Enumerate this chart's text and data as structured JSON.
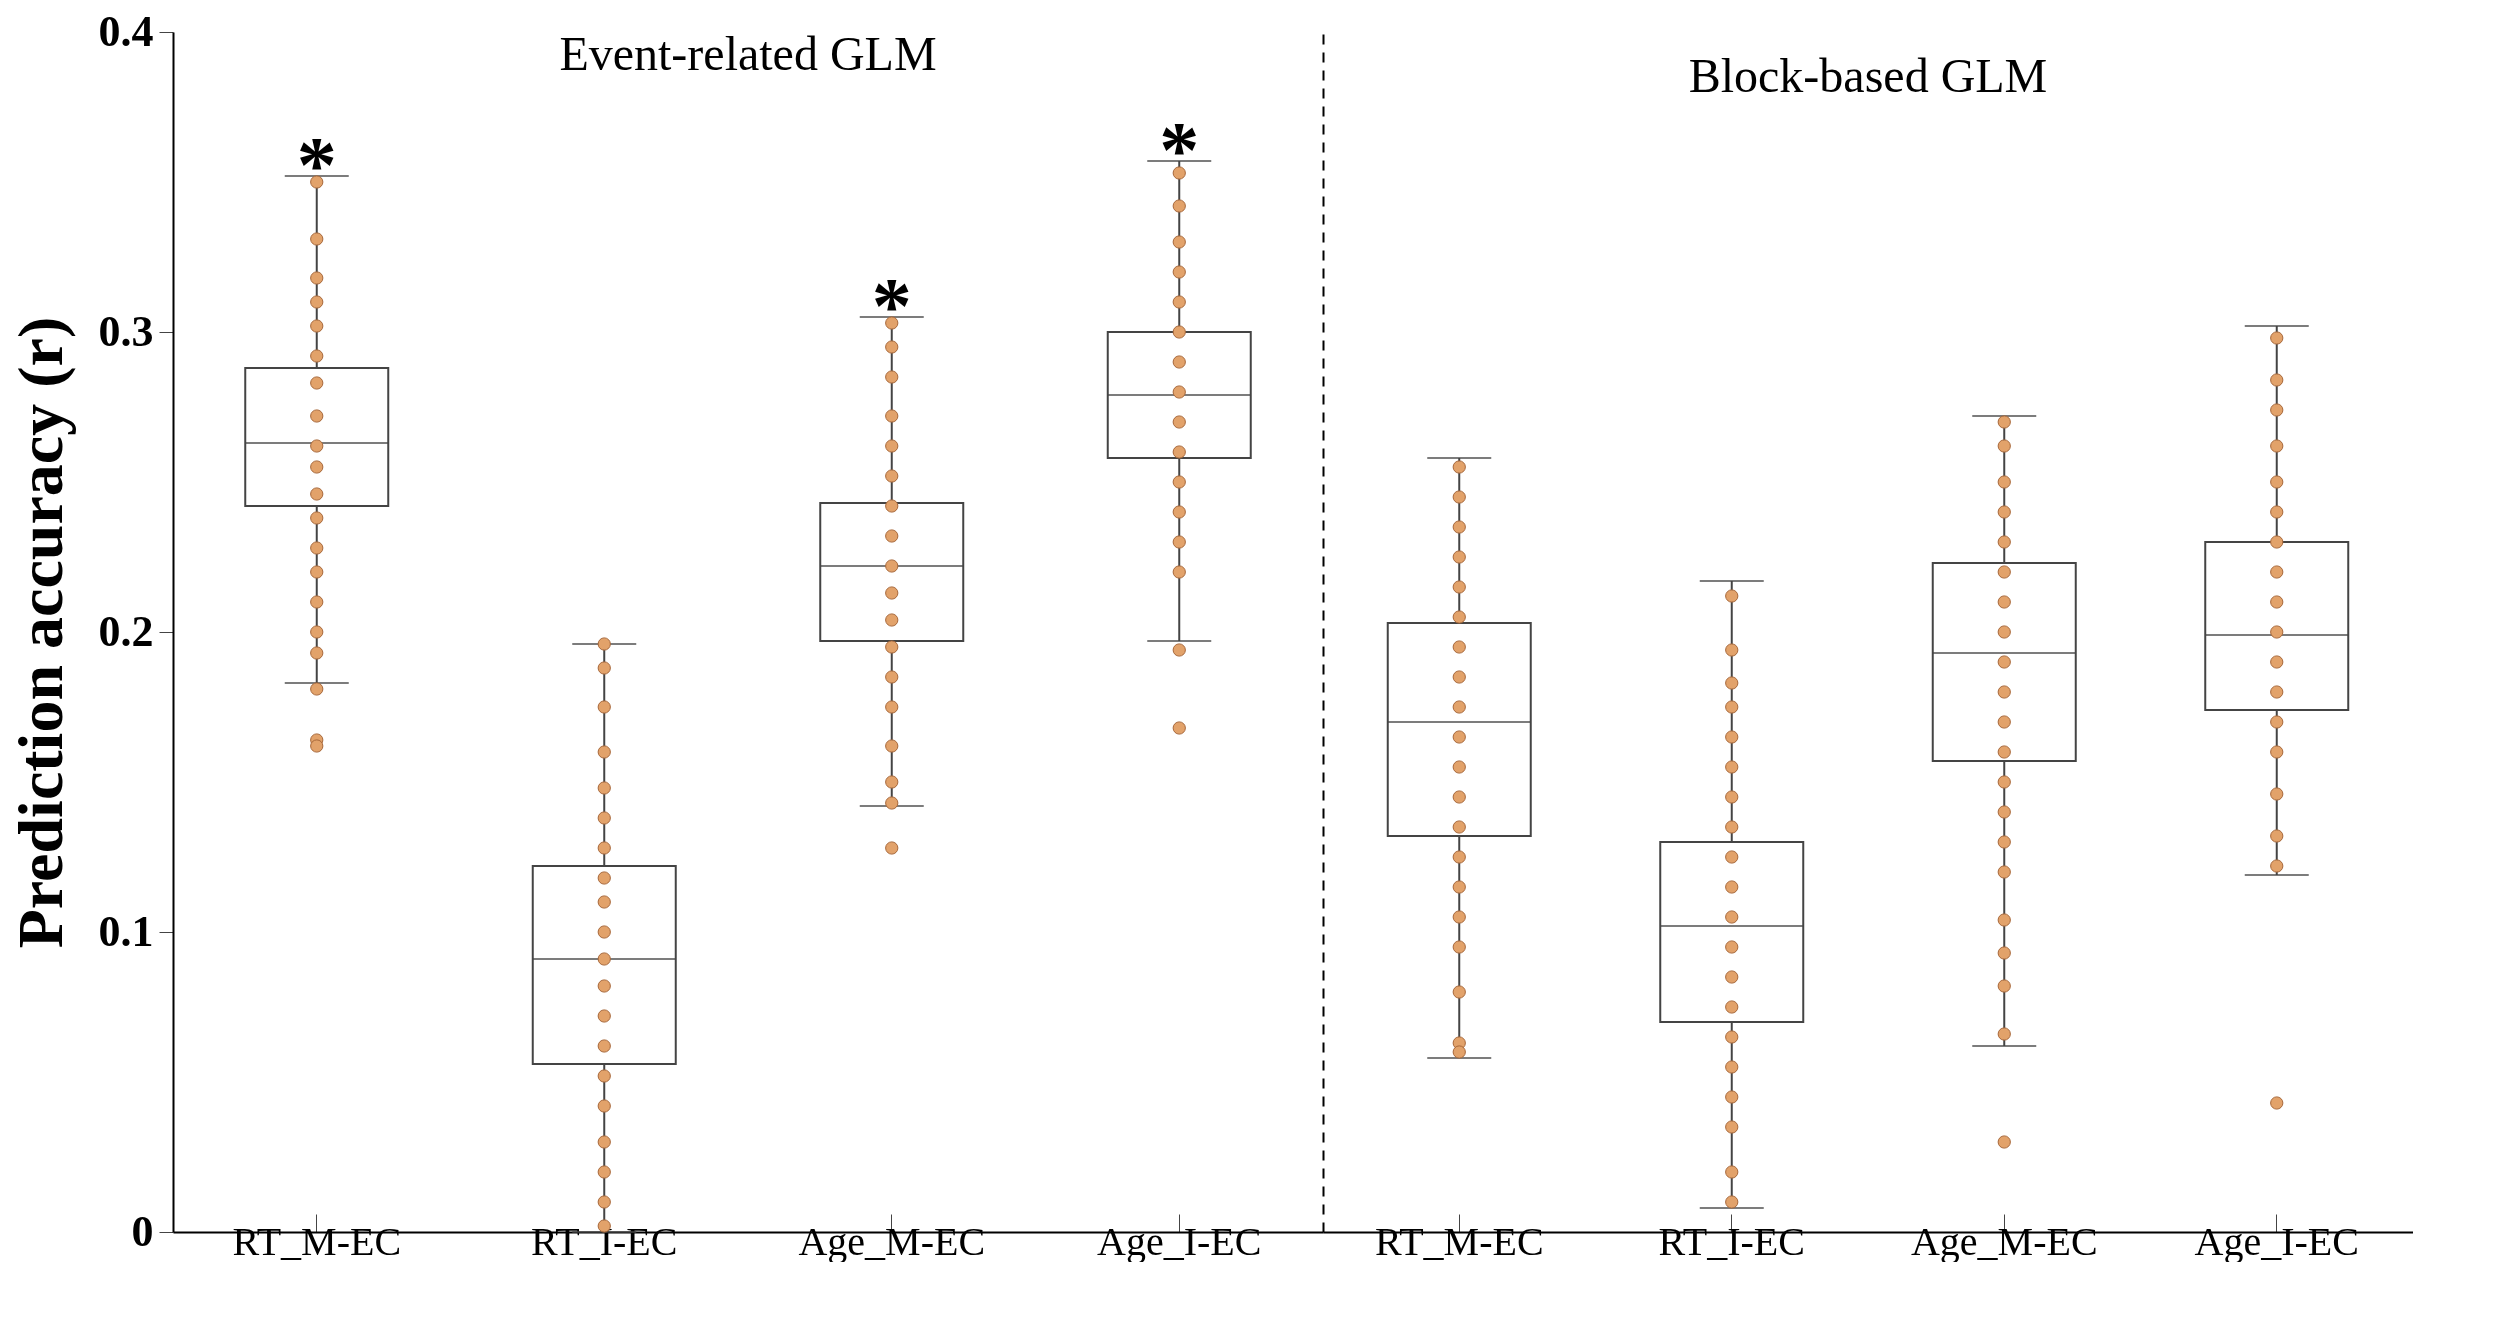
{
  "chart_data": [
    {
      "type": "box",
      "title": "Event-related GLM",
      "ylabel": "Prediction accuracy (r)",
      "categories": [
        "RT_M-EC",
        "RT_I-EC",
        "Age_M-EC",
        "Age_I-EC"
      ],
      "ylim": [
        0,
        0.4
      ],
      "yticks": [
        0,
        0.1,
        0.2,
        0.3,
        0.4
      ],
      "grid": false,
      "series": [
        {
          "color": "#444444",
          "boxes": [
            {
              "low": 0.183,
              "q1": 0.242,
              "median": 0.263,
              "q3": 0.288,
              "high": 0.352
            },
            {
              "low": 0.0,
              "q1": 0.056,
              "median": 0.091,
              "q3": 0.122,
              "high": 0.196
            },
            {
              "low": 0.142,
              "q1": 0.197,
              "median": 0.222,
              "q3": 0.243,
              "high": 0.305
            },
            {
              "low": 0.197,
              "q1": 0.258,
              "median": 0.279,
              "q3": 0.3,
              "high": 0.357
            }
          ]
        },
        {
          "type": "scatter",
          "color": "#e2a26a",
          "x": [
            "RT_M-EC",
            "RT_M-EC",
            "Age_M-EC",
            "Age_I-EC",
            "Age_I-EC",
            "RT_M-EC",
            "RT_M-EC",
            "RT_M-EC",
            "RT_M-EC",
            "RT_M-EC",
            "RT_M-EC",
            "RT_M-EC",
            "RT_M-EC",
            "RT_M-EC",
            "RT_M-EC",
            "RT_M-EC",
            "RT_M-EC",
            "RT_M-EC",
            "RT_M-EC",
            "RT_M-EC",
            "RT_M-EC",
            "RT_M-EC",
            "RT_M-EC",
            "RT_I-EC",
            "RT_I-EC",
            "RT_I-EC",
            "RT_I-EC",
            "RT_I-EC",
            "RT_I-EC",
            "RT_I-EC",
            "RT_I-EC",
            "RT_I-EC",
            "RT_I-EC",
            "RT_I-EC",
            "RT_I-EC",
            "RT_I-EC",
            "RT_I-EC",
            "RT_I-EC",
            "RT_I-EC",
            "RT_I-EC",
            "RT_I-EC",
            "RT_I-EC",
            "RT_I-EC",
            "Age_M-EC",
            "Age_M-EC",
            "Age_M-EC",
            "Age_M-EC",
            "Age_M-EC",
            "Age_M-EC",
            "Age_M-EC",
            "Age_M-EC",
            "Age_M-EC",
            "Age_M-EC",
            "Age_M-EC",
            "Age_M-EC",
            "Age_M-EC",
            "Age_M-EC",
            "Age_M-EC",
            "Age_M-EC",
            "Age_M-EC",
            "Age_I-EC",
            "Age_I-EC",
            "Age_I-EC",
            "Age_I-EC",
            "Age_I-EC",
            "Age_I-EC",
            "Age_I-EC",
            "Age_I-EC",
            "Age_I-EC",
            "Age_I-EC",
            "Age_I-EC",
            "Age_I-EC",
            "Age_I-EC",
            "Age_I-EC"
          ],
          "values": [
            0.164,
            0.162,
            0.128,
            0.194,
            0.168,
            0.35,
            0.331,
            0.318,
            0.31,
            0.302,
            0.292,
            0.283,
            0.272,
            0.262,
            0.255,
            0.246,
            0.238,
            0.228,
            0.22,
            0.21,
            0.2,
            0.193,
            0.181,
            0.196,
            0.188,
            0.175,
            0.16,
            0.148,
            0.138,
            0.128,
            0.118,
            0.11,
            0.1,
            0.091,
            0.082,
            0.072,
            0.062,
            0.052,
            0.042,
            0.03,
            0.02,
            0.01,
            0.002,
            0.303,
            0.295,
            0.285,
            0.272,
            0.262,
            0.252,
            0.242,
            0.232,
            0.222,
            0.213,
            0.204,
            0.195,
            0.185,
            0.175,
            0.162,
            0.15,
            0.143,
            0.353,
            0.342,
            0.33,
            0.32,
            0.31,
            0.3,
            0.29,
            0.28,
            0.27,
            0.26,
            0.25,
            0.24,
            0.23,
            0.22
          ]
        }
      ],
      "annotations": [
        {
          "text": "*",
          "x": "RT_M-EC",
          "y": 0.352
        },
        {
          "text": "*",
          "x": "Age_M-EC",
          "y": 0.305
        },
        {
          "text": "*",
          "x": "Age_I-EC",
          "y": 0.357
        }
      ]
    },
    {
      "type": "box",
      "title": "Block-based GLM",
      "categories": [
        "RT_M-EC",
        "RT_I-EC",
        "Age_M-EC",
        "Age_I-EC"
      ],
      "ylim": [
        0,
        0.4
      ],
      "tick_labels": "x",
      "grid": false,
      "series": [
        {
          "color": "#444444",
          "boxes": [
            {
              "low": 0.058,
              "q1": 0.132,
              "median": 0.17,
              "q3": 0.203,
              "high": 0.258
            },
            {
              "low": 0.008,
              "q1": 0.07,
              "median": 0.102,
              "q3": 0.13,
              "high": 0.217
            },
            {
              "low": 0.062,
              "q1": 0.157,
              "median": 0.193,
              "q3": 0.223,
              "high": 0.272
            },
            {
              "low": 0.119,
              "q1": 0.174,
              "median": 0.199,
              "q3": 0.23,
              "high": 0.302
            }
          ]
        },
        {
          "type": "scatter",
          "color": "#e2a26a",
          "x": [
            "Age_M-EC",
            "Age_I-EC",
            "RT_M-EC",
            "RT_M-EC",
            "RT_M-EC",
            "RT_M-EC",
            "RT_M-EC",
            "RT_M-EC",
            "RT_M-EC",
            "RT_M-EC",
            "RT_M-EC",
            "RT_M-EC",
            "RT_M-EC",
            "RT_M-EC",
            "RT_M-EC",
            "RT_M-EC",
            "RT_M-EC",
            "RT_M-EC",
            "RT_M-EC",
            "RT_M-EC",
            "RT_M-EC",
            "RT_M-EC",
            "RT_I-EC",
            "RT_I-EC",
            "RT_I-EC",
            "RT_I-EC",
            "RT_I-EC",
            "RT_I-EC",
            "RT_I-EC",
            "RT_I-EC",
            "RT_I-EC",
            "RT_I-EC",
            "RT_I-EC",
            "RT_I-EC",
            "RT_I-EC",
            "RT_I-EC",
            "RT_I-EC",
            "RT_I-EC",
            "RT_I-EC",
            "RT_I-EC",
            "RT_I-EC",
            "RT_I-EC",
            "Age_M-EC",
            "Age_M-EC",
            "Age_M-EC",
            "Age_M-EC",
            "Age_M-EC",
            "Age_M-EC",
            "Age_M-EC",
            "Age_M-EC",
            "Age_M-EC",
            "Age_M-EC",
            "Age_M-EC",
            "Age_M-EC",
            "Age_M-EC",
            "Age_M-EC",
            "Age_M-EC",
            "Age_M-EC",
            "Age_M-EC",
            "Age_M-EC",
            "Age_M-EC",
            "Age_M-EC",
            "Age_I-EC",
            "Age_I-EC",
            "Age_I-EC",
            "Age_I-EC",
            "Age_I-EC",
            "Age_I-EC",
            "Age_I-EC",
            "Age_I-EC",
            "Age_I-EC",
            "Age_I-EC",
            "Age_I-EC",
            "Age_I-EC",
            "Age_I-EC",
            "Age_I-EC",
            "Age_I-EC",
            "Age_I-EC",
            "Age_I-EC"
          ],
          "values": [
            0.03,
            0.043,
            0.255,
            0.245,
            0.235,
            0.225,
            0.215,
            0.205,
            0.195,
            0.185,
            0.175,
            0.165,
            0.155,
            0.145,
            0.135,
            0.125,
            0.115,
            0.105,
            0.095,
            0.08,
            0.063,
            0.06,
            0.212,
            0.194,
            0.183,
            0.175,
            0.165,
            0.155,
            0.145,
            0.135,
            0.125,
            0.115,
            0.105,
            0.095,
            0.085,
            0.075,
            0.065,
            0.055,
            0.045,
            0.035,
            0.02,
            0.01,
            0.27,
            0.262,
            0.25,
            0.24,
            0.23,
            0.22,
            0.21,
            0.2,
            0.19,
            0.18,
            0.17,
            0.16,
            0.15,
            0.14,
            0.13,
            0.12,
            0.104,
            0.093,
            0.082,
            0.066,
            0.298,
            0.284,
            0.274,
            0.262,
            0.25,
            0.24,
            0.23,
            0.22,
            0.21,
            0.2,
            0.19,
            0.18,
            0.17,
            0.16,
            0.146,
            0.132,
            0.122
          ]
        }
      ]
    }
  ]
}
